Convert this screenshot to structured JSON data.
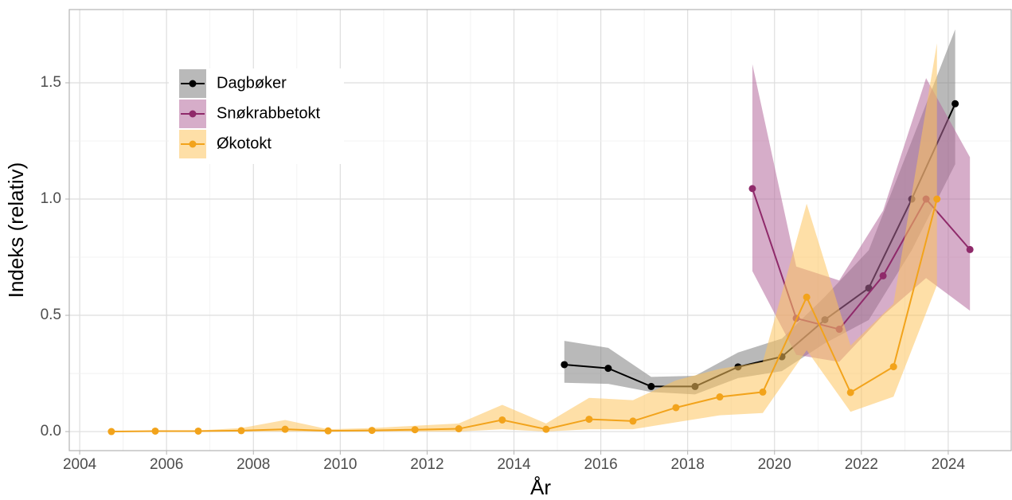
{
  "chart_data": {
    "type": "line",
    "x_label": "År",
    "y_label": "Indeks (relativ)",
    "xlim": [
      2003.76,
      2025.45
    ],
    "ylim": [
      -0.082,
      1.815
    ],
    "xticks": [
      2004,
      2006,
      2008,
      2010,
      2012,
      2014,
      2016,
      2018,
      2020,
      2022,
      2024
    ],
    "yticks": [
      {
        "value": 0,
        "label": "0.0"
      },
      {
        "value": 0.5,
        "label": "0.5"
      },
      {
        "value": 1,
        "label": "1.0"
      },
      {
        "value": 1.5,
        "label": "1.5"
      }
    ],
    "grid": true,
    "legend": "top-left",
    "series": [
      {
        "name": "Dagbøker",
        "color": "#000000",
        "band_color": "#7f7f7f",
        "x": [
          2015.16,
          2016.17,
          2017.16,
          2018.17,
          2019.16,
          2020.17,
          2021.16,
          2022.17,
          2023.16,
          2024.16
        ],
        "values": [
          0.288,
          0.272,
          0.194,
          0.194,
          0.278,
          0.322,
          0.481,
          0.617,
          1.0,
          1.41
        ],
        "lower": [
          0.21,
          0.205,
          0.17,
          0.16,
          0.23,
          0.26,
          0.38,
          0.48,
          0.78,
          1.15
        ],
        "upper": [
          0.39,
          0.36,
          0.235,
          0.24,
          0.34,
          0.4,
          0.58,
          0.78,
          1.25,
          1.73
        ]
      },
      {
        "name": "Snøkrabbetokt",
        "color": "#8f2a6a",
        "band_color": "#b46a9c",
        "x": [
          2019.49,
          2020.5,
          2021.49,
          2022.5,
          2023.49,
          2024.5
        ],
        "values": [
          1.045,
          0.487,
          0.44,
          0.67,
          1.0,
          0.783
        ],
        "lower": [
          0.69,
          0.33,
          0.3,
          0.5,
          0.66,
          0.52
        ],
        "upper": [
          1.58,
          0.71,
          0.65,
          0.95,
          1.52,
          1.18
        ]
      },
      {
        "name": "Økotokt",
        "color": "#f2a31b",
        "band_color": "#fdc55e",
        "x": [
          2004.73,
          2005.74,
          2006.73,
          2007.72,
          2008.73,
          2009.72,
          2010.73,
          2011.72,
          2012.73,
          2013.73,
          2014.74,
          2015.73,
          2016.74,
          2017.73,
          2018.74,
          2019.73,
          2020.74,
          2021.75,
          2022.74,
          2023.74
        ],
        "values": [
          0,
          0.002,
          0.002,
          0.004,
          0.01,
          0.003,
          0.005,
          0.008,
          0.012,
          0.05,
          0.01,
          0.053,
          0.045,
          0.103,
          0.149,
          0.17,
          0.578,
          0.168,
          0.279,
          1.0
        ],
        "lower": [
          0,
          0,
          0,
          0,
          0,
          0,
          0,
          0,
          0,
          0.01,
          0,
          0.01,
          0.01,
          0.04,
          0.07,
          0.08,
          0.35,
          0.085,
          0.15,
          0.63
        ],
        "upper": [
          0,
          0.005,
          0.005,
          0.015,
          0.05,
          0.01,
          0.015,
          0.025,
          0.035,
          0.115,
          0.035,
          0.145,
          0.135,
          0.22,
          0.27,
          0.3,
          0.98,
          0.37,
          0.55,
          1.67
        ]
      }
    ]
  }
}
